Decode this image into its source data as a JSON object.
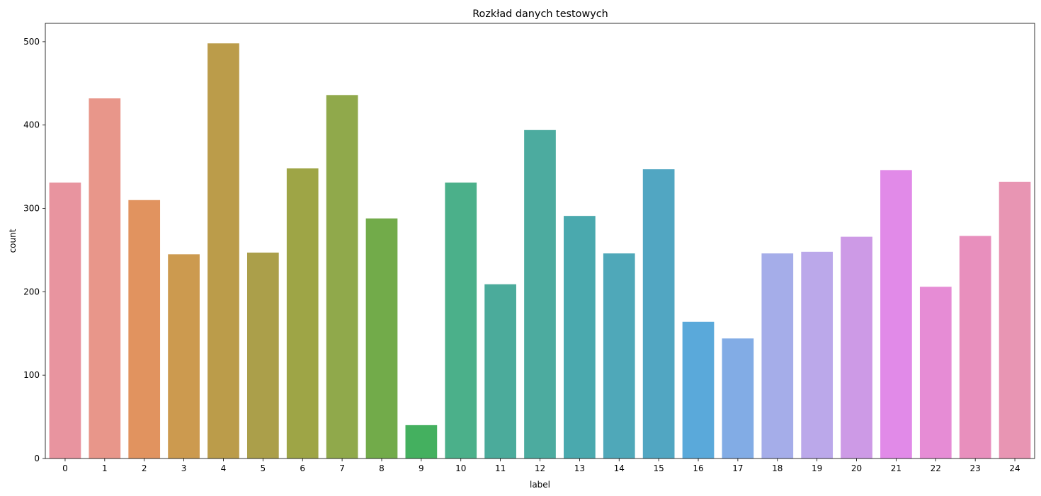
{
  "chart_data": {
    "type": "bar",
    "title": "Rozkład danych testowych",
    "xlabel": "label",
    "ylabel": "count",
    "ylim": [
      0,
      522
    ],
    "yticks": [
      0,
      100,
      200,
      300,
      400,
      500
    ],
    "grid": false,
    "categories": [
      "0",
      "1",
      "2",
      "3",
      "4",
      "5",
      "6",
      "7",
      "8",
      "9",
      "10",
      "11",
      "12",
      "13",
      "14",
      "15",
      "16",
      "17",
      "18",
      "19",
      "20",
      "21",
      "22",
      "23",
      "24"
    ],
    "values": [
      331,
      432,
      310,
      245,
      498,
      247,
      348,
      436,
      288,
      40,
      331,
      209,
      394,
      291,
      246,
      347,
      164,
      144,
      246,
      248,
      266,
      346,
      206,
      267,
      332
    ],
    "colors": [
      "#e8949f",
      "#e8968a",
      "#e1935f",
      "#cc9a4f",
      "#bb9c4a",
      "#ab9f4a",
      "#9ea546",
      "#90a94b",
      "#72ab4a",
      "#44b05f",
      "#4bb08a",
      "#4bab9b",
      "#4cab9f",
      "#4aa9ae",
      "#4fa8b9",
      "#51a6c2",
      "#5aa9da",
      "#82ace5",
      "#a5ade9",
      "#bba8ea",
      "#cd9ae6",
      "#e18ae8",
      "#e68cd5",
      "#e88fbd",
      "#e895b3"
    ]
  }
}
